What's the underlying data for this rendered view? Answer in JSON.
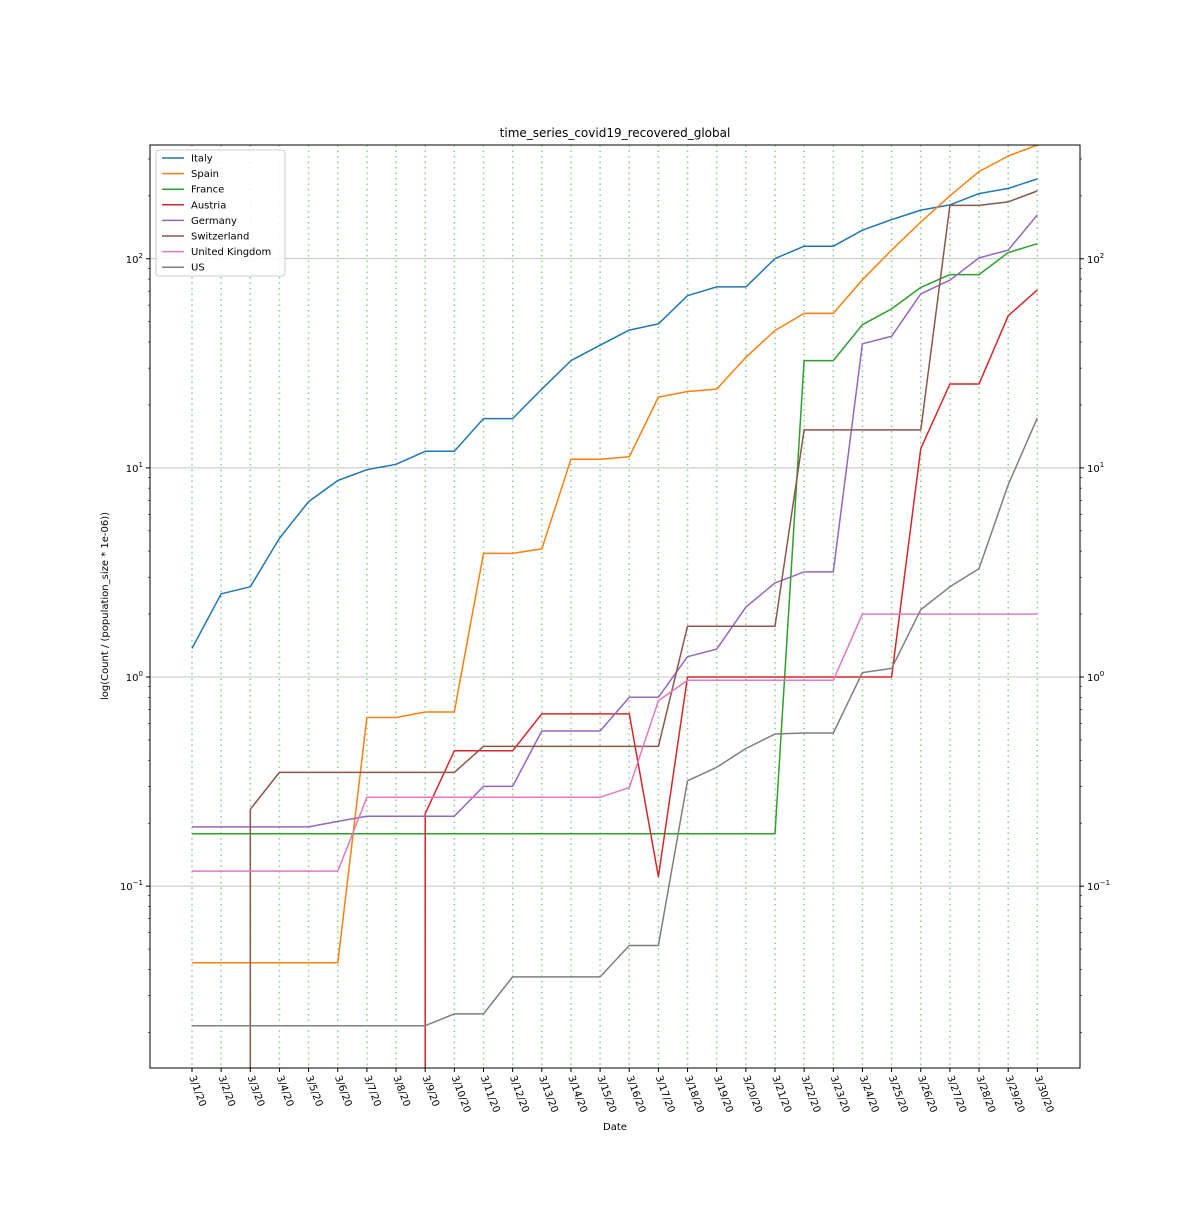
{
  "chart_data": {
    "type": "line",
    "title": "time_series_covid19_recovered_global",
    "xlabel": "Date",
    "ylabel": "log(Count /  (population_size * 1e-06))",
    "yscale": "log",
    "ylim": [
      0.0135,
      350
    ],
    "grid": {
      "y_major": true,
      "x_vertical_dotted": true
    },
    "legend_position": "upper-left",
    "yticks": [
      {
        "value": 0.1,
        "mant": "10",
        "exp": "−1"
      },
      {
        "value": 1,
        "mant": "10",
        "exp": "0"
      },
      {
        "value": 10,
        "mant": "10",
        "exp": "1"
      },
      {
        "value": 100,
        "mant": "10",
        "exp": "2"
      }
    ],
    "categories": [
      "3/1/20",
      "3/2/20",
      "3/3/20",
      "3/4/20",
      "3/5/20",
      "3/6/20",
      "3/7/20",
      "3/8/20",
      "3/9/20",
      "3/10/20",
      "3/11/20",
      "3/12/20",
      "3/13/20",
      "3/14/20",
      "3/15/20",
      "3/16/20",
      "3/17/20",
      "3/18/20",
      "3/19/20",
      "3/20/20",
      "3/21/20",
      "3/22/20",
      "3/23/20",
      "3/24/20",
      "3/25/20",
      "3/26/20",
      "3/27/20",
      "3/28/20",
      "3/29/20",
      "3/30/20"
    ],
    "series": [
      {
        "name": "Italy",
        "color": "#1f77b4",
        "values": [
          1.37,
          2.5,
          2.7,
          4.6,
          6.9,
          8.7,
          9.8,
          10.4,
          12.0,
          12.0,
          17.2,
          17.2,
          23.8,
          32.6,
          38.6,
          45.6,
          48.8,
          66.6,
          73.4,
          73.4,
          100.2,
          114.8,
          114.8,
          137.0,
          154.0,
          171.0,
          181.0,
          205.0,
          217.0,
          241.0
        ]
      },
      {
        "name": "Spain",
        "color": "#ff7f0e",
        "values": [
          0.043,
          0.043,
          0.043,
          0.043,
          0.043,
          0.043,
          0.64,
          0.64,
          0.68,
          0.68,
          3.9,
          3.9,
          4.1,
          11.0,
          11.0,
          11.3,
          21.8,
          23.2,
          23.8,
          33.8,
          45.4,
          54.8,
          54.8,
          79.4,
          110.0,
          150.0,
          200.0,
          261.0,
          310.0,
          350.0
        ]
      },
      {
        "name": "France",
        "color": "#2ca02c",
        "values": [
          0.178,
          0.178,
          0.178,
          0.178,
          0.178,
          0.178,
          0.178,
          0.178,
          0.178,
          0.178,
          0.178,
          0.178,
          0.178,
          0.178,
          0.178,
          0.178,
          0.178,
          0.178,
          0.178,
          0.178,
          0.178,
          32.6,
          32.6,
          48.4,
          57.6,
          73.0,
          84.0,
          84.0,
          107.0,
          118.0
        ]
      },
      {
        "name": "Austria",
        "color": "#d62728",
        "values": [
          null,
          null,
          null,
          null,
          null,
          null,
          null,
          null,
          0.222,
          0.444,
          0.444,
          0.444,
          0.666,
          0.666,
          0.666,
          0.666,
          0.111,
          1.0,
          1.0,
          1.0,
          1.0,
          1.0,
          1.0,
          1.0,
          1.0,
          12.4,
          25.2,
          25.2,
          53.4,
          71.0
        ]
      },
      {
        "name": "Germany",
        "color": "#9467bd",
        "values": [
          0.192,
          0.192,
          0.192,
          0.192,
          0.192,
          0.204,
          0.216,
          0.216,
          0.216,
          0.216,
          0.3,
          0.3,
          0.552,
          0.552,
          0.552,
          0.8,
          0.8,
          1.25,
          1.36,
          2.16,
          2.82,
          3.18,
          3.18,
          39.2,
          42.6,
          68.0,
          79.0,
          101.0,
          110.0,
          162.0
        ]
      },
      {
        "name": "Switzerland",
        "color": "#8c564b",
        "values": [
          null,
          null,
          0.233,
          0.35,
          0.35,
          0.35,
          0.35,
          0.35,
          0.35,
          0.35,
          0.466,
          0.466,
          0.466,
          0.466,
          0.466,
          0.466,
          0.466,
          1.75,
          1.75,
          1.75,
          1.75,
          15.2,
          15.2,
          15.2,
          15.2,
          15.2,
          180.0,
          180.0,
          187.0,
          211.0
        ]
      },
      {
        "name": "United Kingdom",
        "color": "#e377c2",
        "values": [
          0.118,
          0.118,
          0.118,
          0.118,
          0.118,
          0.118,
          0.266,
          0.266,
          0.266,
          0.266,
          0.266,
          0.266,
          0.266,
          0.266,
          0.266,
          0.296,
          0.77,
          0.965,
          0.965,
          0.965,
          0.965,
          0.965,
          0.965,
          2.0,
          2.0,
          2.0,
          2.0,
          2.0,
          2.0,
          2.0
        ]
      },
      {
        "name": "US",
        "color": "#7f7f7f",
        "values": [
          0.0215,
          0.0215,
          0.0215,
          0.0215,
          0.0215,
          0.0215,
          0.0215,
          0.0215,
          0.0215,
          0.0245,
          0.0245,
          0.0368,
          0.0368,
          0.0368,
          0.0368,
          0.052,
          0.052,
          0.319,
          0.37,
          0.455,
          0.534,
          0.54,
          0.54,
          1.05,
          1.1,
          2.1,
          2.7,
          3.3,
          8.3,
          17.3
        ]
      }
    ]
  }
}
